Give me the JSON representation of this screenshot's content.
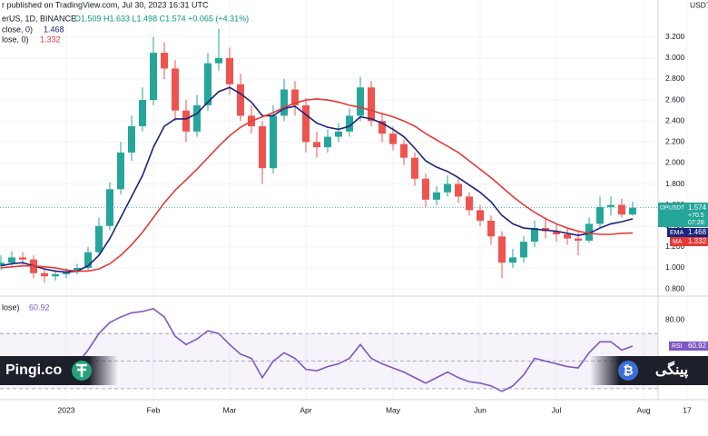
{
  "header": {
    "published": "r published on TradingView.com, Jul 30, 2023 16:31 UTC",
    "symbol": "erUS, 1D, BINANCE",
    "ohlc": "O1.509 H1.633 L1.498 C1.574 +0.065 (+4.31%)",
    "ema_legend": "close, 0)",
    "ema_value": "1.468",
    "ma_legend": "lose, 0)",
    "ma_value": "1.332",
    "rsi_legend": "lose)",
    "rsi_value": "60.92",
    "currency": "USDT"
  },
  "tags": {
    "symbol": "OPUSDT",
    "price": "1.574",
    "change": "+70.5",
    "countdown": "07:28:",
    "ema": "EMA",
    "ema_value": "1.468",
    "ma": "MA",
    "ma_value": "1.332",
    "rsi": "RSI",
    "rsi_value": "60.92"
  },
  "watermarks": {
    "left": "Pingi.co",
    "right": "پینگی"
  },
  "chart_data": [
    {
      "type": "candlestick",
      "categories": [
        null,
        null,
        null,
        null,
        null,
        null,
        "2023",
        null,
        null,
        null,
        null,
        null,
        null,
        null,
        "Feb",
        null,
        null,
        null,
        null,
        null,
        null,
        "Mar",
        null,
        null,
        null,
        null,
        null,
        null,
        "Apr",
        null,
        null,
        null,
        null,
        null,
        null,
        null,
        "May",
        null,
        null,
        null,
        null,
        null,
        null,
        null,
        "Jun",
        null,
        null,
        null,
        null,
        null,
        null,
        "Jul",
        null,
        null,
        null,
        null,
        null,
        null,
        null,
        "Aug",
        null,
        null,
        null,
        "17"
      ],
      "open": [
        1.02,
        1.05,
        1.1,
        1.08,
        0.95,
        0.92,
        0.94,
        0.96,
        1.0,
        1.15,
        1.4,
        1.75,
        2.1,
        2.35,
        2.6,
        3.05,
        2.9,
        2.5,
        2.3,
        2.55,
        2.95,
        3.0,
        2.75,
        2.45,
        2.35,
        1.95,
        2.45,
        2.7,
        2.55,
        2.2,
        2.15,
        2.25,
        2.3,
        2.45,
        2.72,
        2.4,
        2.28,
        2.18,
        2.05,
        1.85,
        1.65,
        1.72,
        1.8,
        1.68,
        1.55,
        1.45,
        1.3,
        1.05,
        1.1,
        1.25,
        1.38,
        1.35,
        1.32,
        1.28,
        1.26,
        1.42,
        1.58,
        1.6,
        1.509,
        null,
        null,
        null,
        null,
        null
      ],
      "high": [
        1.12,
        1.16,
        1.15,
        1.12,
        0.99,
        0.98,
        1.0,
        1.04,
        1.2,
        1.48,
        1.82,
        2.2,
        2.45,
        2.72,
        3.2,
        3.15,
        2.98,
        2.6,
        2.65,
        3.05,
        3.28,
        3.1,
        2.85,
        2.55,
        2.4,
        2.55,
        2.8,
        2.78,
        2.62,
        2.3,
        2.32,
        2.38,
        2.52,
        2.82,
        2.78,
        2.48,
        2.35,
        2.22,
        2.1,
        1.9,
        1.78,
        1.88,
        1.85,
        1.72,
        1.6,
        1.5,
        1.35,
        1.18,
        1.3,
        1.45,
        1.48,
        1.42,
        1.38,
        1.34,
        1.48,
        1.68,
        1.68,
        1.66,
        1.633,
        null,
        null,
        null,
        null,
        null
      ],
      "low": [
        0.98,
        1.02,
        1.03,
        0.9,
        0.86,
        0.88,
        0.9,
        0.94,
        0.98,
        1.12,
        1.36,
        1.7,
        2.02,
        2.3,
        2.55,
        2.8,
        2.4,
        2.2,
        2.25,
        2.5,
        2.88,
        2.65,
        2.4,
        2.28,
        1.8,
        1.9,
        2.4,
        2.45,
        2.1,
        2.05,
        2.1,
        2.2,
        2.25,
        2.4,
        2.35,
        2.2,
        2.12,
        1.98,
        1.78,
        1.58,
        1.6,
        1.68,
        1.62,
        1.5,
        1.4,
        1.22,
        0.9,
        1.0,
        1.05,
        1.2,
        1.28,
        1.25,
        1.22,
        1.12,
        1.24,
        1.38,
        1.5,
        1.48,
        1.498,
        null,
        null,
        null,
        null,
        null
      ],
      "close": [
        1.05,
        1.1,
        1.08,
        0.95,
        0.92,
        0.94,
        0.96,
        1.0,
        1.15,
        1.4,
        1.75,
        2.1,
        2.35,
        2.6,
        3.05,
        2.9,
        2.5,
        2.3,
        2.55,
        2.95,
        3.0,
        2.75,
        2.45,
        2.35,
        1.95,
        2.45,
        2.7,
        2.55,
        2.2,
        2.15,
        2.25,
        2.3,
        2.45,
        2.72,
        2.4,
        2.28,
        2.18,
        2.05,
        1.85,
        1.65,
        1.72,
        1.8,
        1.68,
        1.55,
        1.45,
        1.3,
        1.05,
        1.1,
        1.25,
        1.38,
        1.35,
        1.32,
        1.28,
        1.26,
        1.42,
        1.58,
        1.6,
        1.509,
        1.574,
        null,
        null,
        null,
        null,
        null
      ],
      "up_color": "#26a69a",
      "down_color": "#ef5350",
      "series": [
        {
          "name": "EMA",
          "color": "#1a237e",
          "values": [
            1.02,
            1.04,
            1.05,
            1.02,
            0.99,
            0.97,
            0.96,
            0.97,
            1.02,
            1.12,
            1.28,
            1.48,
            1.68,
            1.88,
            2.15,
            2.35,
            2.42,
            2.42,
            2.47,
            2.58,
            2.68,
            2.72,
            2.66,
            2.58,
            2.45,
            2.45,
            2.52,
            2.54,
            2.46,
            2.38,
            2.34,
            2.32,
            2.35,
            2.44,
            2.42,
            2.38,
            2.32,
            2.25,
            2.14,
            2.02,
            1.96,
            1.92,
            1.86,
            1.79,
            1.72,
            1.63,
            1.5,
            1.42,
            1.38,
            1.37,
            1.36,
            1.35,
            1.33,
            1.31,
            1.33,
            1.38,
            1.42,
            1.44,
            1.468,
            null,
            null,
            null,
            null,
            null
          ]
        },
        {
          "name": "MA",
          "color": "#e53935",
          "values": [
            1.0,
            1.01,
            1.02,
            1.02,
            1.01,
            1.0,
            0.98,
            0.97,
            0.97,
            0.99,
            1.04,
            1.12,
            1.22,
            1.34,
            1.48,
            1.62,
            1.74,
            1.84,
            1.94,
            2.05,
            2.16,
            2.26,
            2.34,
            2.4,
            2.44,
            2.48,
            2.53,
            2.57,
            2.6,
            2.61,
            2.6,
            2.58,
            2.55,
            2.53,
            2.5,
            2.47,
            2.44,
            2.4,
            2.35,
            2.28,
            2.22,
            2.16,
            2.1,
            2.02,
            1.94,
            1.86,
            1.77,
            1.68,
            1.6,
            1.53,
            1.47,
            1.42,
            1.38,
            1.35,
            1.33,
            1.32,
            1.32,
            1.33,
            1.332,
            null,
            null,
            null,
            null,
            null
          ]
        }
      ],
      "ylim": [
        0.74,
        3.553
      ],
      "yticks": [
        {
          "value": 0.8,
          "label": "0.800"
        },
        {
          "value": 1.0,
          "label": "1.000"
        },
        {
          "value": 1.2,
          "label": "1.200"
        },
        {
          "value": 1.4,
          "label": "1.400"
        },
        {
          "value": 1.6,
          "label": "1.600"
        },
        {
          "value": 1.8,
          "label": "1.800"
        },
        {
          "value": 2.0,
          "label": "2.000"
        },
        {
          "value": 2.2,
          "label": "2.200"
        },
        {
          "value": 2.4,
          "label": "2.400"
        },
        {
          "value": 2.6,
          "label": "2.600"
        },
        {
          "value": 2.8,
          "label": "2.800"
        },
        {
          "value": 3.0,
          "label": "3.000"
        },
        {
          "value": 3.2,
          "label": "3.200"
        }
      ],
      "grid": true
    },
    {
      "type": "line",
      "series": [
        {
          "name": "RSI",
          "color": "#7e57c2",
          "values": [
            45,
            52,
            50,
            40,
            38,
            42,
            45,
            48,
            58,
            70,
            78,
            82,
            85,
            86,
            88,
            82,
            68,
            62,
            66,
            72,
            70,
            62,
            55,
            52,
            38,
            50,
            56,
            52,
            44,
            43,
            46,
            48,
            52,
            62,
            52,
            48,
            45,
            42,
            38,
            34,
            38,
            42,
            38,
            35,
            34,
            32,
            28,
            32,
            40,
            52,
            50,
            48,
            46,
            45,
            56,
            64,
            64,
            58,
            60.92,
            null,
            null,
            null,
            null,
            null
          ]
        }
      ],
      "levels": [
        70,
        50,
        30
      ],
      "ylim": [
        22,
        94.5
      ],
      "yticks": [
        {
          "value": 80,
          "label": "80.00"
        }
      ]
    }
  ]
}
